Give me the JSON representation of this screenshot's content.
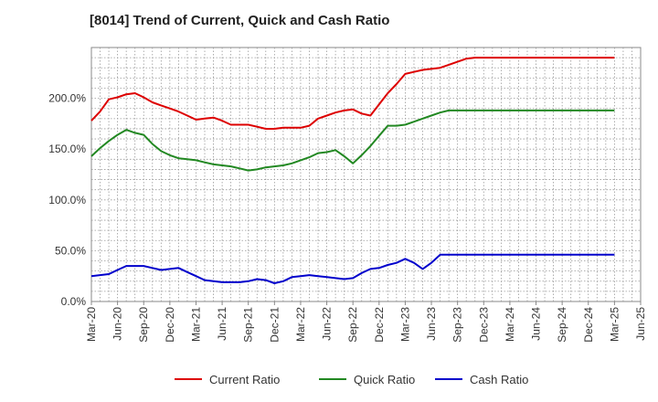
{
  "chart_data": {
    "type": "line",
    "title": "[8014]  Trend of Current, Quick and Cash Ratio",
    "xlabel": "",
    "ylabel": "",
    "ylim": [
      0,
      250
    ],
    "yticks": [
      0,
      50,
      100,
      150,
      200
    ],
    "ytick_labels": [
      "0.0%",
      "50.0%",
      "100.0%",
      "150.0%",
      "200.0%"
    ],
    "x_tick_labels": [
      "Mar-20",
      "Jun-20",
      "Sep-20",
      "Dec-20",
      "Mar-21",
      "Jun-21",
      "Sep-21",
      "Dec-21",
      "Mar-22",
      "Jun-22",
      "Sep-22",
      "Dec-22",
      "Mar-23",
      "Jun-23",
      "Sep-23",
      "Dec-23",
      "Mar-24",
      "Jun-24",
      "Sep-24",
      "Dec-24",
      "Mar-25",
      "Jun-25"
    ],
    "x_period_count": 61,
    "grid": true,
    "legend_position": "bottom",
    "series": [
      {
        "name": "Current Ratio",
        "color": "#dd0000",
        "x": [
          0,
          1,
          2,
          3,
          4,
          5,
          6,
          7,
          8,
          9,
          10,
          11,
          12,
          13,
          14,
          15,
          16,
          17,
          18,
          19,
          20,
          21,
          22,
          23,
          24,
          25,
          26,
          27,
          28,
          29,
          30,
          31,
          32,
          33,
          34,
          35,
          36,
          37,
          38,
          39,
          40,
          41,
          42,
          43,
          44,
          45,
          46,
          47,
          48,
          49,
          50,
          51,
          52,
          53,
          54,
          55,
          56,
          57,
          58,
          59,
          60
        ],
        "values": [
          178,
          187,
          199,
          201,
          204,
          205,
          201,
          196,
          193,
          190,
          187,
          183,
          179,
          180,
          181,
          178,
          174,
          174,
          174,
          172,
          170,
          170,
          171,
          171,
          171,
          173,
          180,
          183,
          186,
          188,
          189,
          185,
          183,
          194,
          205,
          214,
          224,
          226,
          228,
          229,
          230,
          233,
          236,
          239,
          240,
          240,
          240,
          240,
          240,
          240,
          240,
          240,
          240,
          240,
          240,
          240,
          240,
          240,
          240,
          240,
          240
        ]
      },
      {
        "name": "Quick Ratio",
        "color": "#228822",
        "x": [
          0,
          1,
          2,
          3,
          4,
          5,
          6,
          7,
          8,
          9,
          10,
          11,
          12,
          13,
          14,
          15,
          16,
          17,
          18,
          19,
          20,
          21,
          22,
          23,
          24,
          25,
          26,
          27,
          28,
          29,
          30,
          31,
          32,
          33,
          34,
          35,
          36,
          37,
          38,
          39,
          40,
          41,
          42,
          43,
          44,
          45,
          46,
          47,
          48,
          49,
          50,
          51,
          52,
          53,
          54,
          55,
          56,
          57,
          58,
          59,
          60
        ],
        "values": [
          143,
          151,
          158,
          164,
          169,
          166,
          164,
          155,
          148,
          144,
          141,
          140,
          139,
          137,
          135,
          134,
          133,
          131,
          129,
          130,
          132,
          133,
          134,
          136,
          139,
          142,
          146,
          147,
          149,
          143,
          136,
          144,
          153,
          163,
          173,
          173,
          174,
          177,
          180,
          183,
          186,
          188,
          188,
          188,
          188,
          188,
          188,
          188,
          188,
          188,
          188,
          188,
          188,
          188,
          188,
          188,
          188,
          188,
          188,
          188,
          188
        ]
      },
      {
        "name": "Cash Ratio",
        "color": "#0000cc",
        "x": [
          0,
          1,
          2,
          3,
          4,
          5,
          6,
          7,
          8,
          9,
          10,
          11,
          12,
          13,
          14,
          15,
          16,
          17,
          18,
          19,
          20,
          21,
          22,
          23,
          24,
          25,
          26,
          27,
          28,
          29,
          30,
          31,
          32,
          33,
          34,
          35,
          36,
          37,
          38,
          39,
          40,
          41,
          42,
          43,
          44,
          45,
          46,
          47,
          48,
          49,
          50,
          51,
          52,
          53,
          54,
          55,
          56,
          57,
          58,
          59,
          60
        ],
        "values": [
          25,
          26,
          27,
          31,
          35,
          35,
          35,
          33,
          31,
          32,
          33,
          29,
          25,
          21,
          20,
          19,
          19,
          19,
          20,
          22,
          21,
          18,
          20,
          24,
          25,
          26,
          25,
          24,
          23,
          22,
          23,
          28,
          32,
          33,
          36,
          38,
          42,
          38,
          32,
          38,
          46,
          46,
          46,
          46,
          46,
          46,
          46,
          46,
          46,
          46,
          46,
          46,
          46,
          46,
          46,
          46,
          46,
          46,
          46,
          46,
          46
        ]
      }
    ]
  }
}
